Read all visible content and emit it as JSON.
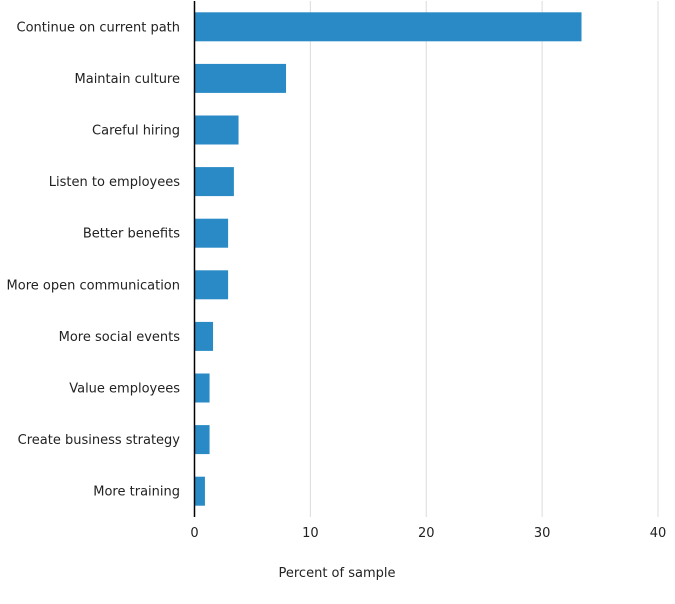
{
  "chart_data": {
    "type": "bar",
    "orientation": "horizontal",
    "categories": [
      "Continue on current path",
      "Maintain culture",
      "Careful hiring",
      "Listen to employees",
      "Better benefits",
      "More open communication",
      "More social events",
      "Value employees",
      "Create business strategy",
      "More training"
    ],
    "values": [
      33.4,
      7.9,
      3.8,
      3.4,
      2.9,
      2.9,
      1.6,
      1.3,
      1.3,
      0.9
    ],
    "xlabel": "Percent of sample",
    "ylabel": "",
    "xlim": [
      0,
      40
    ],
    "xticks": [
      0,
      10,
      20,
      30,
      40
    ],
    "grid": "vertical",
    "bar_color": "#2a8ac6",
    "legend": "none"
  }
}
